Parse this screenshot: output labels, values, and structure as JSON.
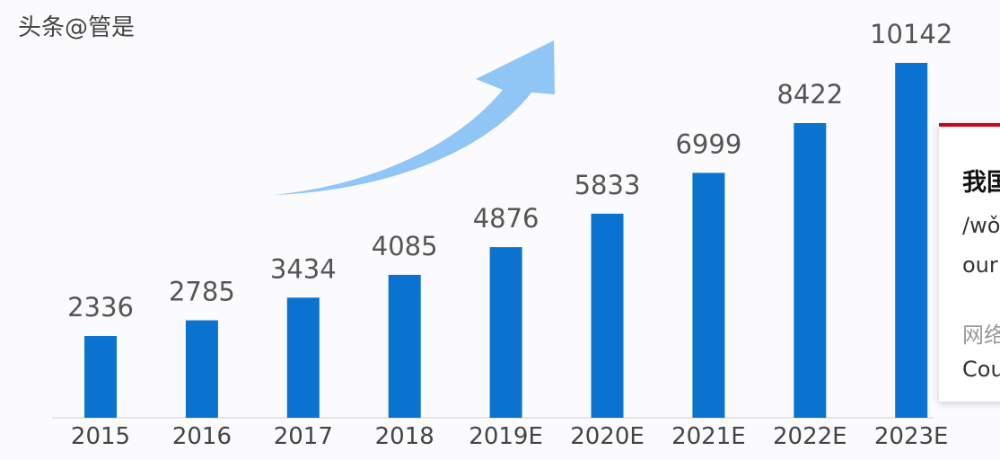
{
  "chart_data": {
    "type": "bar",
    "categories": [
      "2015",
      "2016",
      "2017",
      "2018",
      "2019E",
      "2020E",
      "2021E",
      "2022E",
      "2023E"
    ],
    "values": [
      2336,
      2785,
      3434,
      4085,
      4876,
      5833,
      6999,
      8422,
      10142
    ],
    "bar_color": "#0a73cf",
    "label_color": "#555555",
    "arrow_color": "#8fc6f5",
    "ylim": [
      0,
      10142
    ],
    "grid": false
  },
  "popup": {
    "title": "我国",
    "pinyin": "/wǒ",
    "english": "our",
    "subtitle": "网络",
    "english2": "Cou",
    "accent": "#d0021b"
  },
  "watermark": "头条@管是"
}
